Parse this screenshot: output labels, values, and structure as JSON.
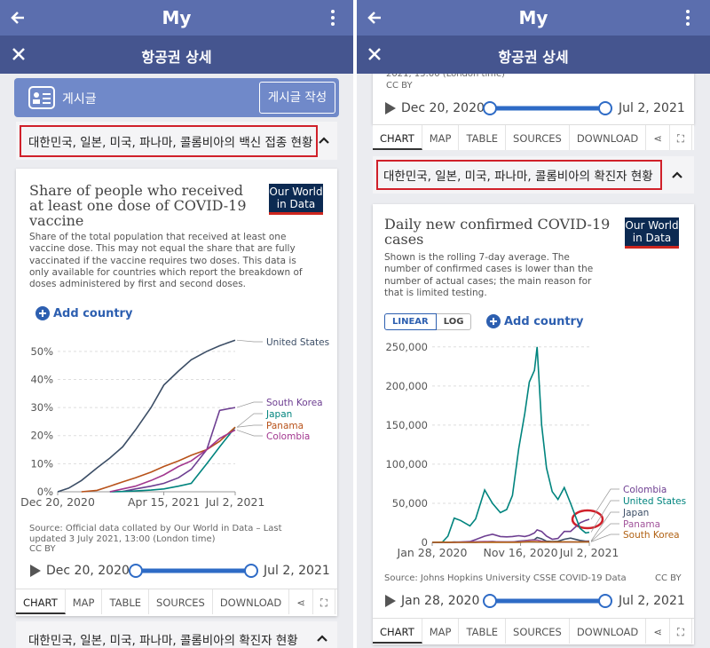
{
  "panes": [
    {
      "app_title": "My",
      "page_title": "항공권 상세",
      "post_label": "게시글",
      "post_button": "게시글 작성",
      "section": "대한민국, 일본, 미국, 파나마, 콜롬비아의 백신 접종 현황",
      "logo": [
        "Our World",
        "in Data"
      ],
      "add_country": "Add country",
      "source": "Source: Official data collated by Our World in Data – Last updated 3 July 2021, 13:00 (London time)",
      "license": "CC BY",
      "timeline_start": "Dec 20, 2020",
      "timeline_end": "Jul 2, 2021",
      "tabs": [
        "CHART",
        "MAP",
        "TABLE",
        "SOURCES",
        "DOWNLOAD"
      ],
      "next_section": "대한민국, 일본, 미국, 파나마, 콜롬비아의 확진자 현황"
    },
    {
      "app_title": "My",
      "page_title": "항공권 상세",
      "prev_source_tail": "2021, 13:00 (London time)",
      "prev_license": "CC BY",
      "prev_timeline_start": "Dec 20, 2020",
      "prev_timeline_end": "Jul 2, 2021",
      "prev_tabs": [
        "CHART",
        "MAP",
        "TABLE",
        "SOURCES",
        "DOWNLOAD"
      ],
      "section": "대한민국, 일본, 미국, 파나마, 콜롬비아의 확진자 현황",
      "logo": [
        "Our World",
        "in Data"
      ],
      "scale_toggle": [
        "LINEAR",
        "LOG"
      ],
      "add_country": "Add country",
      "source": "Source: Johns Hopkins University CSSE COVID-19 Data",
      "license": "CC BY",
      "timeline_start": "Jan 28, 2020",
      "timeline_end": "Jul 2, 2021",
      "tabs": [
        "CHART",
        "MAP",
        "TABLE",
        "SOURCES",
        "DOWNLOAD"
      ]
    }
  ],
  "chart_data": [
    {
      "type": "line",
      "title": "Share of people who received at least one dose of COVID-19 vaccine",
      "subtitle": "Share of the total population that received at least one vaccine dose. This may not equal the share that are fully vaccinated if the vaccine requires two doses. This data is only available for countries which report the breakdown of doses administered by first and second doses.",
      "x": [
        "2020-12-20",
        "2021-01-01",
        "2021-01-15",
        "2021-02-01",
        "2021-02-15",
        "2021-03-01",
        "2021-03-15",
        "2021-04-01",
        "2021-04-15",
        "2021-05-01",
        "2021-05-15",
        "2021-06-01",
        "2021-06-15",
        "2021-07-02"
      ],
      "xlim": [
        "2020-12-20",
        "2021-07-02"
      ],
      "xticks": [
        {
          "value": "2020-12-20",
          "label": "Dec 20, 2020"
        },
        {
          "value": "2021-04-15",
          "label": "Apr 15, 2021"
        },
        {
          "value": "2021-07-02",
          "label": "Jul 2, 2021"
        }
      ],
      "ylim": [
        0,
        55
      ],
      "yticks": [
        {
          "value": 0,
          "label": "0%"
        },
        {
          "value": 10,
          "label": "10%"
        },
        {
          "value": 20,
          "label": "20%"
        },
        {
          "value": 30,
          "label": "30%"
        },
        {
          "value": 40,
          "label": "40%"
        },
        {
          "value": 50,
          "label": "50%"
        }
      ],
      "grid": true,
      "series": [
        {
          "name": "United States",
          "color": "#3c4e66",
          "values": [
            0,
            1.3,
            4,
            8.5,
            12,
            16,
            22,
            30,
            38,
            43,
            47,
            50,
            52,
            54
          ]
        },
        {
          "name": "South Korea",
          "color": "#6d3e91",
          "values": [
            null,
            null,
            null,
            null,
            null,
            0.1,
            1,
            2,
            3,
            5,
            8,
            15,
            29,
            30
          ]
        },
        {
          "name": "Japan",
          "color": "#00847e",
          "values": [
            null,
            null,
            null,
            null,
            0,
            0.1,
            0.3,
            0.6,
            1,
            2,
            3,
            10,
            16,
            23
          ]
        },
        {
          "name": "Panama",
          "color": "#b8521a",
          "values": [
            null,
            null,
            0,
            0.5,
            2,
            3.5,
            5,
            7,
            9,
            11,
            13,
            15,
            18,
            23
          ]
        },
        {
          "name": "Colombia",
          "color": "#a2378f",
          "values": [
            null,
            null,
            null,
            null,
            0,
            1,
            2,
            4,
            6,
            9,
            11,
            15,
            19,
            22
          ]
        }
      ]
    },
    {
      "type": "line",
      "title": "Daily new confirmed COVID-19 cases",
      "subtitle": "Shown is the rolling 7-day average. The number of confirmed cases is lower than the number of actual cases; the main reason for that is limited testing.",
      "x": [
        "2020-01-28",
        "2020-03-01",
        "2020-03-20",
        "2020-04-10",
        "2020-05-01",
        "2020-06-01",
        "2020-06-20",
        "2020-07-20",
        "2020-08-15",
        "2020-09-10",
        "2020-10-01",
        "2020-10-20",
        "2020-11-10",
        "2020-11-30",
        "2020-12-15",
        "2021-01-01",
        "2021-01-10",
        "2021-01-25",
        "2021-02-10",
        "2021-03-01",
        "2021-03-20",
        "2021-04-10",
        "2021-05-01",
        "2021-06-01",
        "2021-06-20",
        "2021-07-02"
      ],
      "xlim": [
        "2020-01-28",
        "2021-07-02"
      ],
      "xticks": [
        {
          "value": "2020-01-28",
          "label": "Jan 28, 2020"
        },
        {
          "value": "2020-11-16",
          "label": "Nov 16, 2020"
        },
        {
          "value": "2021-07-02",
          "label": "Jul 2, 2021"
        }
      ],
      "ylim": [
        0,
        260000
      ],
      "yticks": [
        0,
        {
          "value": 50000,
          "label": "50,000"
        },
        {
          "value": 100000,
          "label": "100,000"
        },
        {
          "value": 150000,
          "label": "150,000"
        },
        {
          "value": 200000,
          "label": "200,000"
        },
        {
          "value": 250000,
          "label": "250,000"
        }
      ],
      "grid": true,
      "series": [
        {
          "name": "Colombia",
          "color": "#6d3e91",
          "values": [
            0,
            0,
            50,
            150,
            400,
            1000,
            3500,
            8000,
            10500,
            7500,
            7000,
            7500,
            8500,
            7500,
            9000,
            12000,
            16000,
            14000,
            8000,
            4000,
            5000,
            14000,
            14000,
            25000,
            28000,
            29500
          ]
        },
        {
          "name": "United States",
          "color": "#00847e",
          "values": [
            0,
            5,
            8000,
            31000,
            28000,
            21000,
            30000,
            67000,
            50000,
            38000,
            42000,
            60000,
            120000,
            165000,
            205000,
            220000,
            250000,
            150000,
            95000,
            65000,
            55000,
            70000,
            50000,
            18000,
            12000,
            13000
          ]
        },
        {
          "name": "Japan",
          "color": "#3c4e66",
          "values": [
            0,
            10,
            40,
            400,
            200,
            40,
            60,
            700,
            1000,
            500,
            500,
            600,
            1500,
            2300,
            2800,
            3500,
            6200,
            4500,
            1500,
            1000,
            1400,
            4000,
            5500,
            2500,
            1500,
            1700
          ]
        },
        {
          "name": "Panama",
          "color": "#a2559c",
          "values": [
            0,
            0,
            50,
            150,
            200,
            400,
            800,
            1000,
            900,
            700,
            600,
            700,
            900,
            1900,
            2800,
            2800,
            2900,
            1500,
            700,
            400,
            300,
            300,
            400,
            600,
            900,
            1000
          ]
        },
        {
          "name": "South Korea",
          "color": "#b16214",
          "values": [
            0,
            300,
            100,
            50,
            10,
            40,
            50,
            40,
            250,
            150,
            80,
            80,
            150,
            450,
            900,
            800,
            650,
            400,
            400,
            400,
            450,
            650,
            600,
            500,
            550,
            700
          ]
        }
      ]
    }
  ]
}
